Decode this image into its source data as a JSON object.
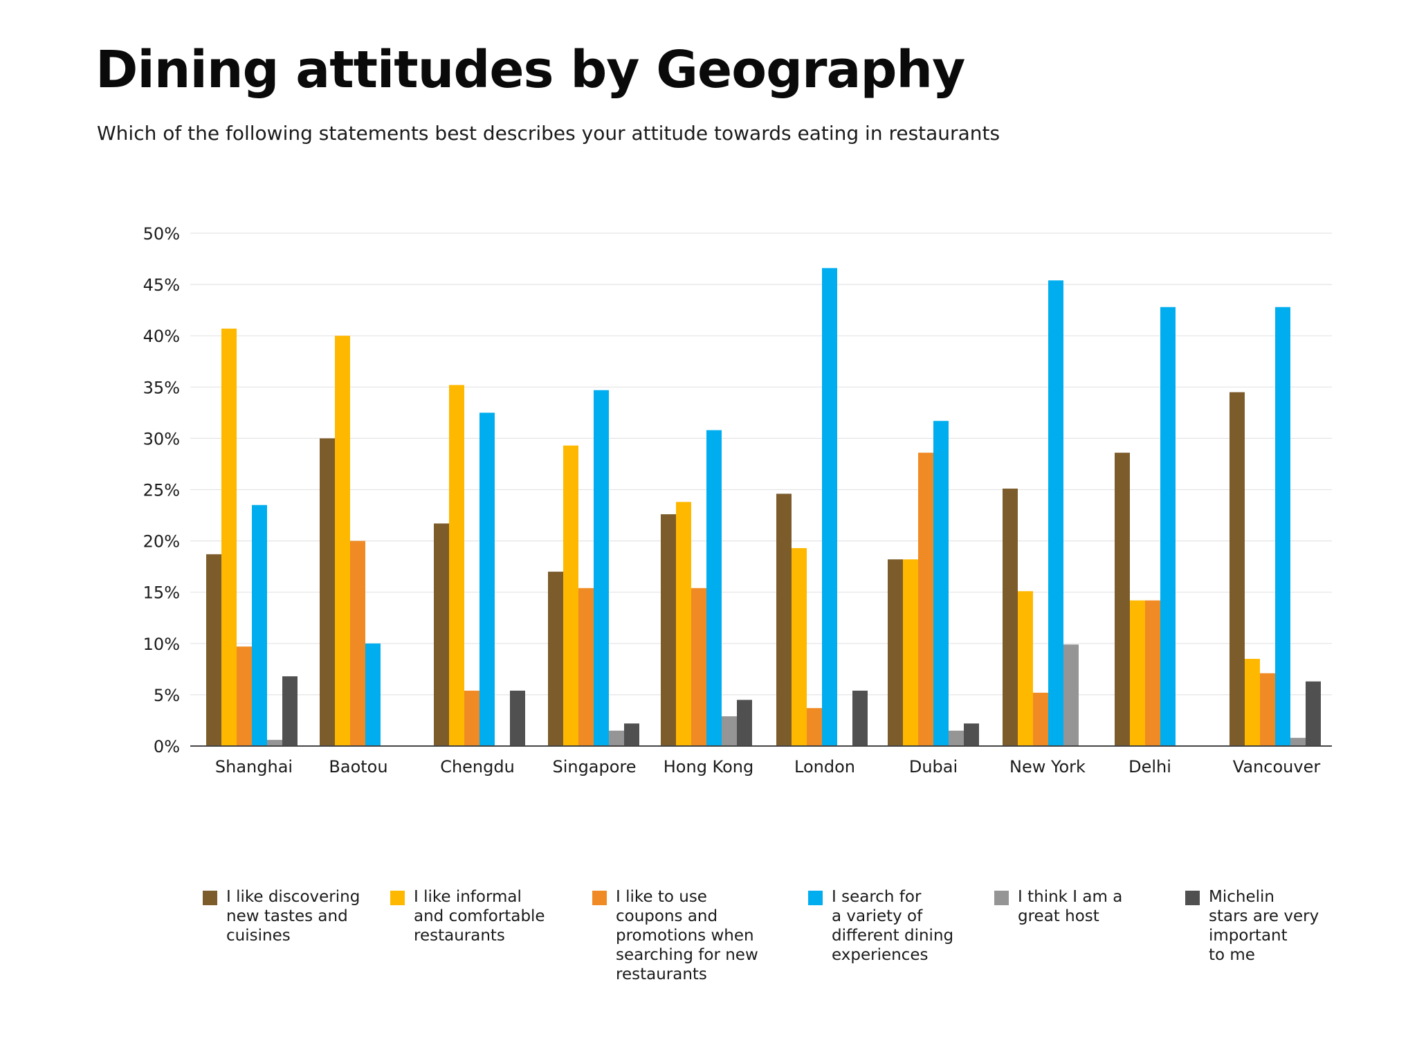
{
  "title": "Dining attitudes by Geography",
  "subtitle": "Which of the following statements best describes your attitude towards eating in restaurants",
  "chart_data": {
    "type": "bar",
    "categories": [
      "Shanghai",
      "Baotou",
      "Chengdu",
      "Singapore",
      "Hong Kong",
      "London",
      "Dubai",
      "New York",
      "Delhi",
      "Vancouver"
    ],
    "yticks": [
      "0%",
      "5%",
      "10%",
      "15%",
      "20%",
      "25%",
      "30%",
      "35%",
      "40%",
      "45%",
      "50%"
    ],
    "ylim": [
      0,
      50
    ],
    "grid": true,
    "legend_position": "bottom",
    "series": [
      {
        "name": "I like discovering\nnew tastes and\ncuisines",
        "color": "#7d5c2b",
        "values": [
          18.7,
          30.0,
          21.7,
          17.0,
          22.6,
          24.6,
          18.2,
          25.1,
          28.6,
          34.5
        ]
      },
      {
        "name": "I like informal\nand comfortable\nrestaurants",
        "color": "#ffb800",
        "values": [
          40.7,
          40.0,
          35.2,
          29.3,
          23.8,
          19.3,
          18.2,
          15.1,
          14.2,
          8.5
        ]
      },
      {
        "name": "I like to use\ncoupons and\npromotions when\nsearching for new\nrestaurants",
        "color": "#f08a24",
        "values": [
          9.7,
          20.0,
          5.4,
          15.4,
          15.4,
          3.7,
          28.6,
          5.2,
          14.2,
          7.1
        ]
      },
      {
        "name": "I search for\na variety of\ndifferent dining\nexperiences",
        "color": "#00aeef",
        "values": [
          23.5,
          10.0,
          32.5,
          34.7,
          30.8,
          46.6,
          31.7,
          45.4,
          42.8,
          42.8
        ]
      },
      {
        "name": "I think I am a\ngreat host",
        "color": "#959595",
        "values": [
          0.6,
          0,
          0,
          1.5,
          2.9,
          0,
          1.5,
          9.9,
          0,
          0.8
        ]
      },
      {
        "name": "Michelin\nstars are very\nimportant\nto me",
        "color": "#505050",
        "values": [
          6.8,
          0,
          5.4,
          2.2,
          4.5,
          5.4,
          2.2,
          0,
          0,
          6.3
        ]
      }
    ]
  }
}
